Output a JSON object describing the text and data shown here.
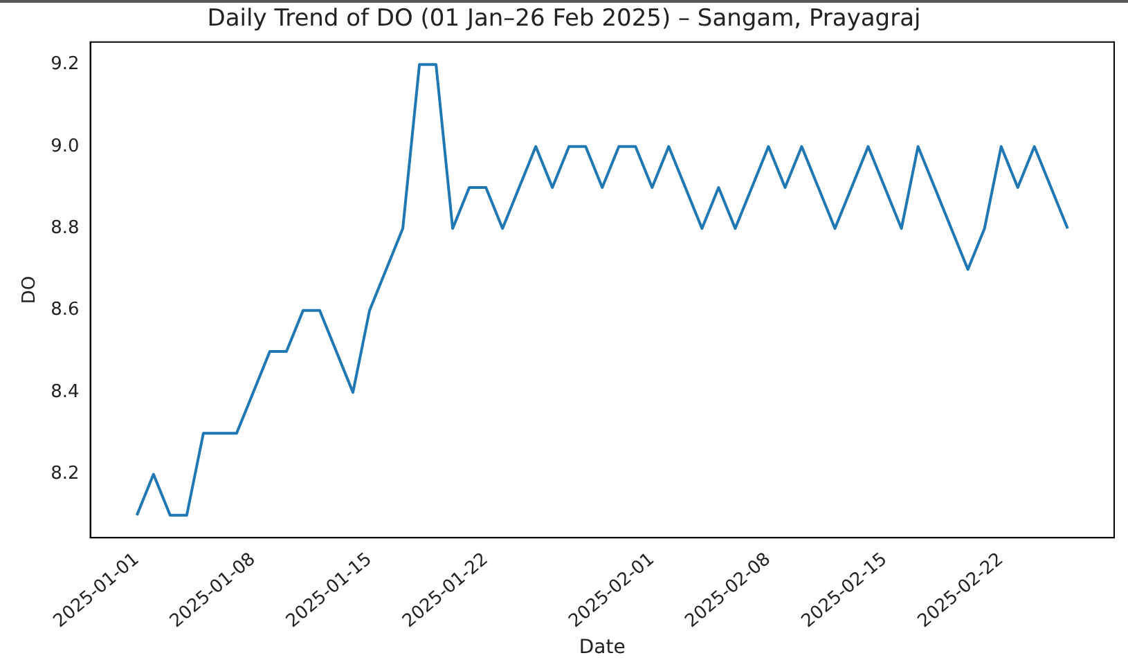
{
  "chart_data": {
    "type": "line",
    "title": "Daily Trend of DO (01 Jan–26 Feb 2025) – Sangam, Prayagraj",
    "xlabel": "Date",
    "ylabel": "DO",
    "x": [
      "2025-01-01",
      "2025-01-02",
      "2025-01-03",
      "2025-01-04",
      "2025-01-05",
      "2025-01-06",
      "2025-01-07",
      "2025-01-08",
      "2025-01-09",
      "2025-01-10",
      "2025-01-11",
      "2025-01-12",
      "2025-01-13",
      "2025-01-14",
      "2025-01-15",
      "2025-01-16",
      "2025-01-17",
      "2025-01-18",
      "2025-01-19",
      "2025-01-20",
      "2025-01-21",
      "2025-01-22",
      "2025-01-23",
      "2025-01-24",
      "2025-01-25",
      "2025-01-26",
      "2025-01-27",
      "2025-01-28",
      "2025-01-29",
      "2025-01-30",
      "2025-01-31",
      "2025-02-01",
      "2025-02-02",
      "2025-02-03",
      "2025-02-04",
      "2025-02-05",
      "2025-02-06",
      "2025-02-07",
      "2025-02-08",
      "2025-02-09",
      "2025-02-10",
      "2025-02-11",
      "2025-02-12",
      "2025-02-13",
      "2025-02-14",
      "2025-02-15",
      "2025-02-16",
      "2025-02-17",
      "2025-02-18",
      "2025-02-19",
      "2025-02-20",
      "2025-02-21",
      "2025-02-22",
      "2025-02-23",
      "2025-02-24",
      "2025-02-25",
      "2025-02-26"
    ],
    "series": [
      {
        "color": "#1f77b4",
        "values": [
          8.1,
          8.2,
          8.1,
          8.1,
          8.3,
          8.3,
          8.3,
          8.4,
          8.5,
          8.5,
          8.6,
          8.6,
          8.5,
          8.4,
          8.6,
          8.7,
          8.8,
          9.2,
          9.2,
          8.8,
          8.9,
          8.9,
          8.8,
          8.9,
          9.0,
          8.9,
          9.0,
          9.0,
          8.9,
          9.0,
          9.0,
          8.9,
          9.0,
          8.9,
          8.8,
          8.9,
          8.8,
          8.9,
          9.0,
          8.9,
          9.0,
          8.9,
          8.8,
          8.9,
          9.0,
          8.9,
          8.8,
          9.0,
          8.9,
          8.8,
          8.7,
          8.8,
          9.0,
          8.9,
          9.0,
          8.9,
          8.8
        ]
      }
    ],
    "xlim": [
      "2024-12-29T04:48",
      "2025-02-28T19:12"
    ],
    "xticks": [
      "2025-01-01",
      "2025-01-08",
      "2025-01-15",
      "2025-01-22",
      "2025-02-01",
      "2025-02-08",
      "2025-02-15",
      "2025-02-22"
    ],
    "ylim": [
      8.045,
      9.255
    ],
    "yticks": [
      8.2,
      8.4,
      8.6,
      8.8,
      {
        "value": 9.0,
        "label": "9.0"
      },
      9.2
    ],
    "marker": "none",
    "line_style": "solid",
    "grid": false,
    "legend": false
  }
}
